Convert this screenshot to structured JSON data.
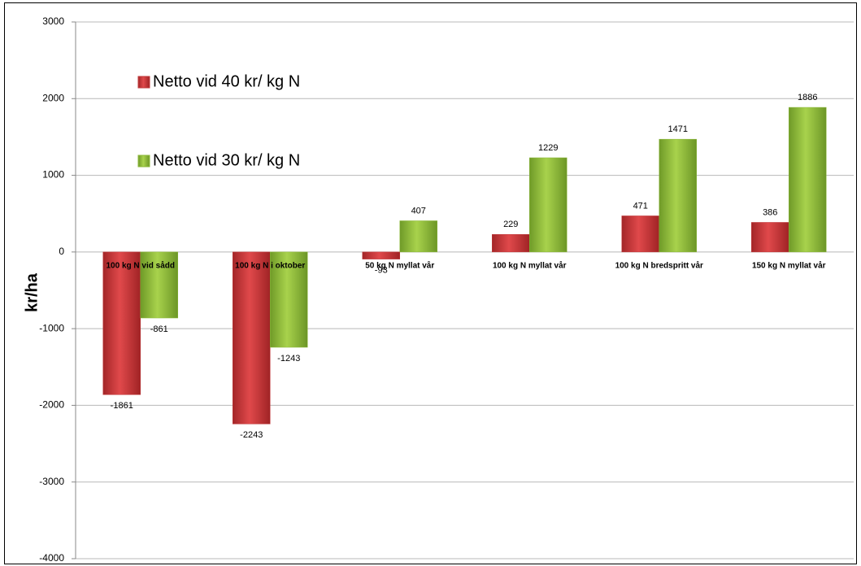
{
  "chart_data": {
    "type": "bar",
    "ylabel": "kr/ha",
    "categories": [
      "100 kg N vid sådd",
      "100 kg N i oktober",
      "50 kg N myllat vår",
      "100 kg N myllat vår",
      "100 kg N bredspritt vår",
      "150 kg N myllat vår"
    ],
    "series": [
      {
        "name": "Netto vid 40 kr/ kg N",
        "color": "#c0393b",
        "values": [
          -1861,
          -2243,
          -93,
          229,
          471,
          386
        ]
      },
      {
        "name": "Netto vid 30 kr/ kg N",
        "color": "#8cb83a",
        "values": [
          -861,
          -1243,
          407,
          1229,
          1471,
          1886
        ]
      }
    ],
    "ylim": [
      -4000,
      3000
    ],
    "yticks": [
      -4000,
      -3000,
      -2000,
      -1000,
      0,
      1000,
      2000,
      3000
    ],
    "grid": true,
    "legend": "upper left"
  }
}
